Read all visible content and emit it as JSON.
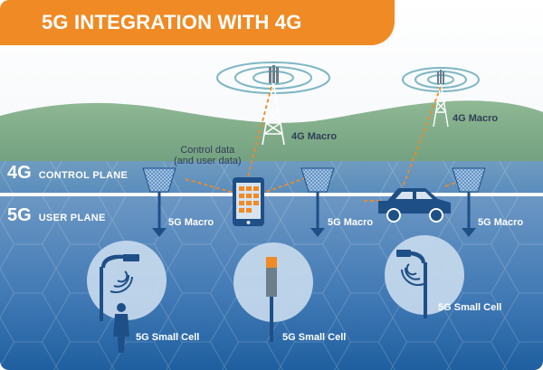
{
  "title": "5G INTEGRATION WITH 4G",
  "planes": {
    "control": {
      "tag": "4G",
      "label": "CONTROL PLANE"
    },
    "user": {
      "tag": "5G",
      "label": "USER PLANE"
    }
  },
  "towers": {
    "macro_4g_left": "4G Macro",
    "macro_4g_right": "4G Macro"
  },
  "note": {
    "line1": "Control data",
    "line2": "(and user data)"
  },
  "macro_5g": {
    "left": "5G Macro",
    "center": "5G Macro",
    "right": "5G Macro"
  },
  "small_cells": {
    "left": "5G Small Cell",
    "center": "5G Small Cell",
    "right": "5G Small Cell"
  },
  "colors": {
    "accent_orange": "#f08a24",
    "sky": "#ffffff",
    "hill": "#7fab86",
    "control_band": "#5a8fbf",
    "user_band": "#4a80b8",
    "deep_blue": "#1f5f9f",
    "icon_dark": "#1e4f86"
  }
}
